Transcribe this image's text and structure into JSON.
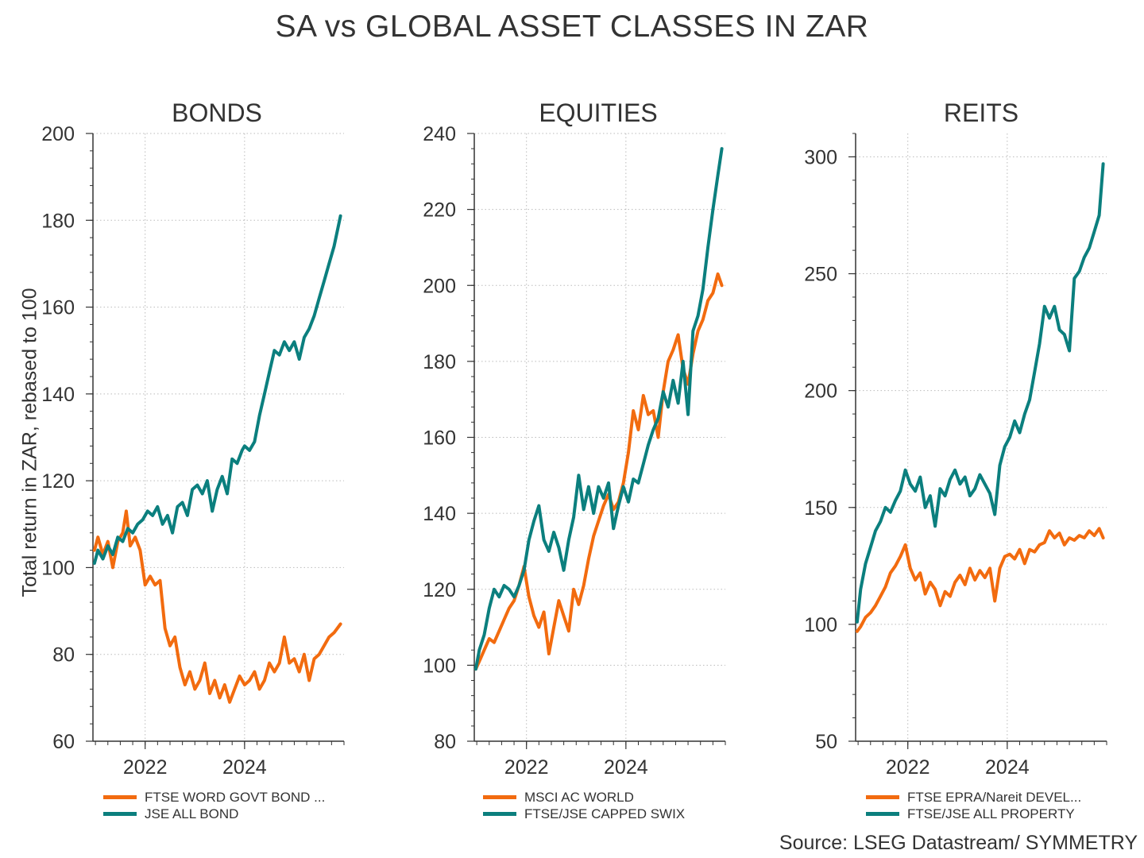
{
  "title": "SA vs GLOBAL ASSET CLASSES IN ZAR",
  "ylabel": "Total return in ZAR, rebased to 100",
  "source": "Source: LSEG Datastream/ SYMMETRY",
  "colors": {
    "orange": "#f26b0f",
    "teal": "#0b7f7e",
    "grid": "#bbbbbb",
    "axis": "#333333"
  },
  "chart_data": [
    {
      "type": "line",
      "title": "BONDS",
      "ylim": [
        60,
        200
      ],
      "yticks": [
        60,
        80,
        100,
        120,
        140,
        160,
        180,
        200
      ],
      "xlim": [
        2020.95,
        2026.0
      ],
      "xticks": [
        2022,
        2024
      ],
      "grid": true,
      "series": [
        {
          "name": "FTSE WORD GOVT BOND ...",
          "color": "#f26b0f",
          "x": [
            2020.98,
            2021.05,
            2021.15,
            2021.25,
            2021.35,
            2021.45,
            2021.55,
            2021.62,
            2021.7,
            2021.8,
            2021.9,
            2022.0,
            2022.1,
            2022.2,
            2022.3,
            2022.4,
            2022.5,
            2022.6,
            2022.7,
            2022.8,
            2022.9,
            2023.0,
            2023.1,
            2023.2,
            2023.3,
            2023.4,
            2023.5,
            2023.6,
            2023.7,
            2023.8,
            2023.9,
            2024.0,
            2024.1,
            2024.2,
            2024.3,
            2024.4,
            2024.5,
            2024.6,
            2024.7,
            2024.8,
            2024.9,
            2025.0,
            2025.1,
            2025.2,
            2025.3,
            2025.4,
            2025.5,
            2025.6,
            2025.7,
            2025.8,
            2025.93
          ],
          "values": [
            104,
            107,
            103,
            106,
            100,
            106,
            108,
            113,
            105,
            107,
            104,
            96,
            98,
            96,
            97,
            86,
            82,
            84,
            77,
            73,
            76,
            72,
            74,
            78,
            71,
            74,
            70,
            73,
            69,
            72,
            75,
            73,
            74,
            76,
            72,
            74,
            78,
            76,
            78,
            84,
            78,
            79,
            76,
            80,
            74,
            79,
            80,
            82,
            84,
            85,
            87
          ]
        },
        {
          "name": "JSE ALL BOND",
          "color": "#0b7f7e",
          "x": [
            2020.98,
            2021.05,
            2021.15,
            2021.25,
            2021.35,
            2021.45,
            2021.55,
            2021.65,
            2021.75,
            2021.85,
            2021.95,
            2022.05,
            2022.15,
            2022.25,
            2022.35,
            2022.45,
            2022.55,
            2022.65,
            2022.75,
            2022.85,
            2022.95,
            2023.05,
            2023.15,
            2023.25,
            2023.35,
            2023.45,
            2023.55,
            2023.65,
            2023.75,
            2023.85,
            2023.95,
            2024.0,
            2024.1,
            2024.2,
            2024.3,
            2024.4,
            2024.5,
            2024.6,
            2024.7,
            2024.8,
            2024.9,
            2025.0,
            2025.1,
            2025.2,
            2025.3,
            2025.4,
            2025.5,
            2025.6,
            2025.7,
            2025.8,
            2025.93
          ],
          "values": [
            101,
            104,
            102,
            105,
            103,
            107,
            106,
            109,
            108,
            110,
            111,
            113,
            112,
            114,
            110,
            112,
            108,
            114,
            115,
            112,
            118,
            119,
            117,
            120,
            113,
            118,
            121,
            117,
            125,
            124,
            127,
            128,
            127,
            129,
            135,
            140,
            145,
            150,
            149,
            152,
            150,
            152,
            148,
            153,
            155,
            158,
            162,
            166,
            170,
            174,
            181
          ]
        }
      ]
    },
    {
      "type": "line",
      "title": "EQUITIES",
      "ylim": [
        80,
        240
      ],
      "yticks": [
        80,
        100,
        120,
        140,
        160,
        180,
        200,
        220,
        240
      ],
      "xlim": [
        2020.95,
        2026.0
      ],
      "xticks": [
        2022,
        2024
      ],
      "grid": true,
      "series": [
        {
          "name": "MSCI AC WORLD",
          "color": "#f26b0f",
          "x": [
            2020.98,
            2021.05,
            2021.15,
            2021.25,
            2021.35,
            2021.45,
            2021.55,
            2021.65,
            2021.75,
            2021.85,
            2021.95,
            2022.05,
            2022.15,
            2022.25,
            2022.35,
            2022.45,
            2022.55,
            2022.65,
            2022.75,
            2022.85,
            2022.95,
            2023.05,
            2023.15,
            2023.25,
            2023.35,
            2023.45,
            2023.55,
            2023.65,
            2023.75,
            2023.85,
            2023.95,
            2024.05,
            2024.15,
            2024.25,
            2024.35,
            2024.45,
            2024.55,
            2024.65,
            2024.75,
            2024.85,
            2024.95,
            2025.05,
            2025.15,
            2025.25,
            2025.35,
            2025.45,
            2025.55,
            2025.65,
            2025.75,
            2025.85,
            2025.93
          ],
          "values": [
            99,
            101,
            104,
            107,
            106,
            109,
            112,
            115,
            117,
            121,
            126,
            118,
            113,
            110,
            114,
            103,
            110,
            117,
            113,
            109,
            120,
            116,
            121,
            128,
            134,
            138,
            142,
            145,
            141,
            143,
            148,
            156,
            167,
            162,
            171,
            166,
            167,
            160,
            172,
            180,
            183,
            187,
            178,
            174,
            182,
            188,
            191,
            196,
            198,
            203,
            200
          ]
        },
        {
          "name": "FTSE/JSE CAPPED SWIX",
          "color": "#0b7f7e",
          "x": [
            2020.98,
            2021.05,
            2021.15,
            2021.25,
            2021.35,
            2021.45,
            2021.55,
            2021.65,
            2021.75,
            2021.85,
            2021.95,
            2022.05,
            2022.15,
            2022.25,
            2022.35,
            2022.45,
            2022.55,
            2022.65,
            2022.75,
            2022.85,
            2022.95,
            2023.05,
            2023.15,
            2023.25,
            2023.35,
            2023.45,
            2023.55,
            2023.65,
            2023.75,
            2023.85,
            2023.95,
            2024.05,
            2024.15,
            2024.25,
            2024.35,
            2024.45,
            2024.55,
            2024.65,
            2024.75,
            2024.85,
            2024.95,
            2025.05,
            2025.15,
            2025.25,
            2025.35,
            2025.45,
            2025.55,
            2025.65,
            2025.75,
            2025.85,
            2025.93
          ],
          "values": [
            99,
            104,
            108,
            115,
            120,
            118,
            121,
            120,
            118,
            121,
            125,
            133,
            138,
            142,
            133,
            130,
            135,
            131,
            125,
            133,
            139,
            150,
            141,
            147,
            140,
            147,
            144,
            148,
            136,
            142,
            147,
            143,
            149,
            148,
            153,
            158,
            162,
            165,
            172,
            168,
            175,
            169,
            180,
            166,
            188,
            192,
            199,
            210,
            220,
            229,
            236
          ]
        }
      ]
    },
    {
      "type": "line",
      "title": "REITS",
      "ylim": [
        50,
        310
      ],
      "yticks": [
        50,
        100,
        150,
        200,
        250,
        300
      ],
      "xlim": [
        2020.95,
        2026.0
      ],
      "xticks": [
        2022,
        2024
      ],
      "grid": true,
      "series": [
        {
          "name": "FTSE EPRA/Nareit DEVEL...",
          "color": "#f26b0f",
          "x": [
            2020.98,
            2021.05,
            2021.15,
            2021.25,
            2021.35,
            2021.45,
            2021.55,
            2021.65,
            2021.75,
            2021.85,
            2021.95,
            2022.05,
            2022.15,
            2022.25,
            2022.35,
            2022.45,
            2022.55,
            2022.65,
            2022.75,
            2022.85,
            2022.95,
            2023.05,
            2023.15,
            2023.25,
            2023.35,
            2023.45,
            2023.55,
            2023.65,
            2023.75,
            2023.85,
            2023.95,
            2024.05,
            2024.15,
            2024.25,
            2024.35,
            2024.45,
            2024.55,
            2024.65,
            2024.75,
            2024.85,
            2024.95,
            2025.05,
            2025.15,
            2025.25,
            2025.35,
            2025.45,
            2025.55,
            2025.65,
            2025.75,
            2025.85,
            2025.93
          ],
          "values": [
            97,
            99,
            103,
            105,
            108,
            112,
            116,
            122,
            125,
            129,
            134,
            124,
            119,
            122,
            113,
            118,
            115,
            108,
            114,
            112,
            118,
            121,
            117,
            124,
            119,
            123,
            120,
            124,
            110,
            124,
            129,
            130,
            128,
            132,
            126,
            132,
            131,
            134,
            135,
            140,
            137,
            139,
            134,
            137,
            136,
            138,
            137,
            140,
            138,
            141,
            137
          ]
        },
        {
          "name": "FTSE/JSE ALL PROPERTY",
          "color": "#0b7f7e",
          "x": [
            2020.98,
            2021.05,
            2021.15,
            2021.25,
            2021.35,
            2021.45,
            2021.55,
            2021.65,
            2021.75,
            2021.85,
            2021.95,
            2022.05,
            2022.15,
            2022.25,
            2022.35,
            2022.45,
            2022.55,
            2022.65,
            2022.75,
            2022.85,
            2022.95,
            2023.05,
            2023.15,
            2023.25,
            2023.35,
            2023.45,
            2023.55,
            2023.65,
            2023.75,
            2023.85,
            2023.95,
            2024.05,
            2024.15,
            2024.25,
            2024.35,
            2024.45,
            2024.55,
            2024.65,
            2024.75,
            2024.85,
            2024.95,
            2025.05,
            2025.15,
            2025.25,
            2025.35,
            2025.45,
            2025.55,
            2025.65,
            2025.75,
            2025.85,
            2025.93
          ],
          "values": [
            101,
            115,
            126,
            133,
            140,
            144,
            150,
            148,
            153,
            157,
            166,
            160,
            157,
            163,
            150,
            155,
            142,
            158,
            155,
            162,
            166,
            160,
            163,
            155,
            158,
            164,
            160,
            156,
            147,
            168,
            176,
            180,
            187,
            182,
            190,
            196,
            208,
            220,
            236,
            231,
            236,
            226,
            224,
            217,
            248,
            251,
            257,
            261,
            268,
            275,
            297
          ]
        }
      ]
    }
  ]
}
